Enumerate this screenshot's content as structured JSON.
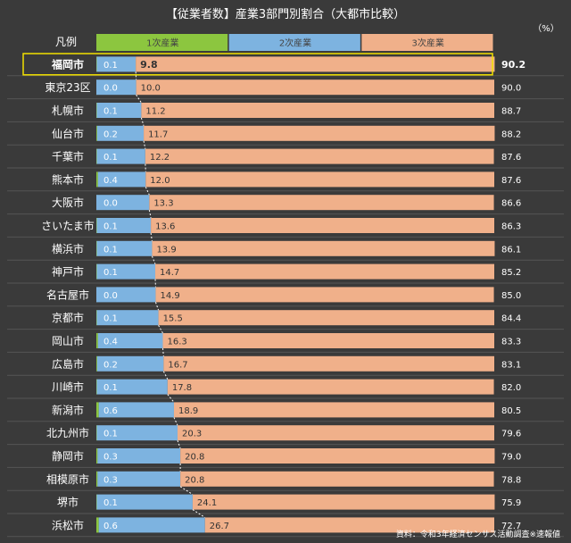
{
  "chart_data": {
    "type": "bar",
    "stacked": true,
    "orientation": "horizontal",
    "title": "【従業者数】産業3部門別割合（大都市比較）",
    "unit": "（%）",
    "legend_label": "凡例",
    "source": "資料：令和3年経済センサス活動調査※速報値",
    "xlim": [
      0,
      100
    ],
    "highlighted_category": "福岡市",
    "categories": [
      "福岡市",
      "東京23区",
      "札幌市",
      "仙台市",
      "千葉市",
      "熊本市",
      "大阪市",
      "さいたま市",
      "横浜市",
      "神戸市",
      "名古屋市",
      "京都市",
      "岡山市",
      "広島市",
      "川崎市",
      "新潟市",
      "北九州市",
      "静岡市",
      "相模原市",
      "堺市",
      "浜松市"
    ],
    "series": [
      {
        "name": "1次産業",
        "color": "#8cc63f",
        "values": [
          0.1,
          0.0,
          0.1,
          0.2,
          0.1,
          0.4,
          0.0,
          0.1,
          0.1,
          0.1,
          0.0,
          0.1,
          0.4,
          0.2,
          0.1,
          0.6,
          0.1,
          0.3,
          0.3,
          0.1,
          0.6
        ]
      },
      {
        "name": "2次産業",
        "color": "#7db3e0",
        "values": [
          9.8,
          10.0,
          11.2,
          11.7,
          12.2,
          12.0,
          13.3,
          13.6,
          13.9,
          14.7,
          14.9,
          15.5,
          16.3,
          16.7,
          17.8,
          18.9,
          20.3,
          20.8,
          20.8,
          24.1,
          26.7
        ]
      },
      {
        "name": "3次産業",
        "color": "#f0b08a",
        "values": [
          90.2,
          90.0,
          88.7,
          88.2,
          87.6,
          87.6,
          86.6,
          86.3,
          86.1,
          85.2,
          85.0,
          84.4,
          83.3,
          83.1,
          82.0,
          80.5,
          79.6,
          79.0,
          78.8,
          75.9,
          72.7
        ]
      }
    ],
    "colors": {
      "background": "#3a3a3a",
      "highlight": "#f2e000",
      "divider": "#555555"
    }
  }
}
